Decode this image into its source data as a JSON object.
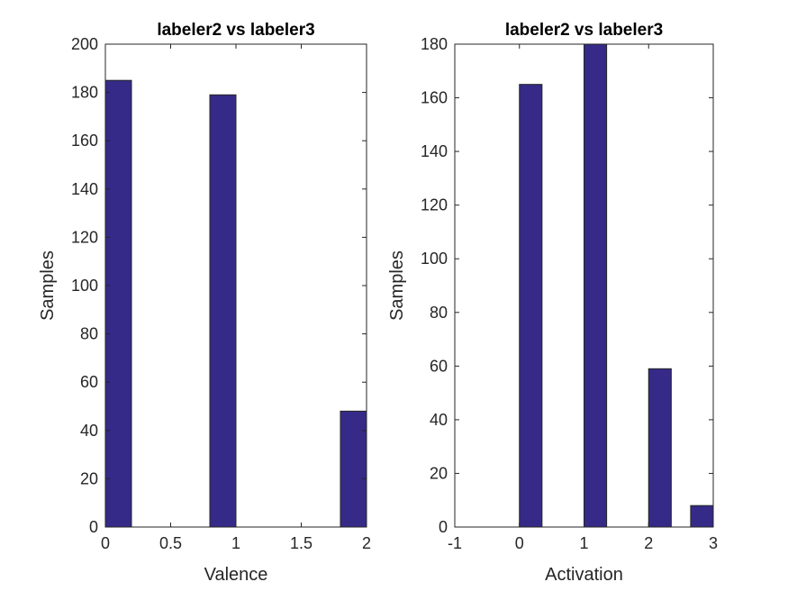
{
  "chart_data": [
    {
      "type": "bar",
      "title": "labeler2 vs labeler3",
      "xlabel": "Valence",
      "ylabel": "Samples",
      "xlim": [
        0,
        2
      ],
      "ylim": [
        0,
        200
      ],
      "xticks": [
        0,
        0.5,
        1,
        1.5,
        2
      ],
      "xtick_labels": [
        "0",
        "0.5",
        "1",
        "1.5",
        "2"
      ],
      "yticks": [
        0,
        20,
        40,
        60,
        80,
        100,
        120,
        140,
        160,
        180,
        200
      ],
      "ytick_labels": [
        "0",
        "20",
        "40",
        "60",
        "80",
        "100",
        "120",
        "140",
        "160",
        "180",
        "200"
      ],
      "bar_width": 0.2,
      "bins": [
        {
          "x_start": 0.0,
          "value": 185
        },
        {
          "x_start": 0.2,
          "value": 0
        },
        {
          "x_start": 0.4,
          "value": 0
        },
        {
          "x_start": 0.6,
          "value": 0
        },
        {
          "x_start": 0.8,
          "value": 179
        },
        {
          "x_start": 1.0,
          "value": 0
        },
        {
          "x_start": 1.2,
          "value": 0
        },
        {
          "x_start": 1.4,
          "value": 0
        },
        {
          "x_start": 1.6,
          "value": 0
        },
        {
          "x_start": 1.8,
          "value": 48
        }
      ],
      "bar_color": "#352a87",
      "grid": false
    },
    {
      "type": "bar",
      "title": "labeler2 vs labeler3",
      "xlabel": "Activation",
      "ylabel": "Samples",
      "xlim": [
        -1,
        3
      ],
      "ylim": [
        0,
        180
      ],
      "xticks": [
        -1,
        0,
        1,
        2,
        3
      ],
      "xtick_labels": [
        "-1",
        "0",
        "1",
        "2",
        "3"
      ],
      "yticks": [
        0,
        20,
        40,
        60,
        80,
        100,
        120,
        140,
        160,
        180
      ],
      "ytick_labels": [
        "0",
        "20",
        "40",
        "60",
        "80",
        "100",
        "120",
        "140",
        "160",
        "180"
      ],
      "bar_width": 0.35,
      "bins": [
        {
          "x_start": -1.0,
          "value": 0
        },
        {
          "x_start": -0.65,
          "value": 0
        },
        {
          "x_start": -0.3,
          "value": 0
        },
        {
          "x_start": 0.0,
          "value": 165
        },
        {
          "x_start": 0.35,
          "value": 0
        },
        {
          "x_start": 0.65,
          "value": 0
        },
        {
          "x_start": 1.0,
          "value": 180
        },
        {
          "x_start": 1.35,
          "value": 0
        },
        {
          "x_start": 1.65,
          "value": 0
        },
        {
          "x_start": 2.0,
          "value": 59
        },
        {
          "x_start": 2.35,
          "value": 0
        },
        {
          "x_start": 2.65,
          "value": 8
        }
      ],
      "bar_color": "#352a87",
      "grid": false
    }
  ]
}
